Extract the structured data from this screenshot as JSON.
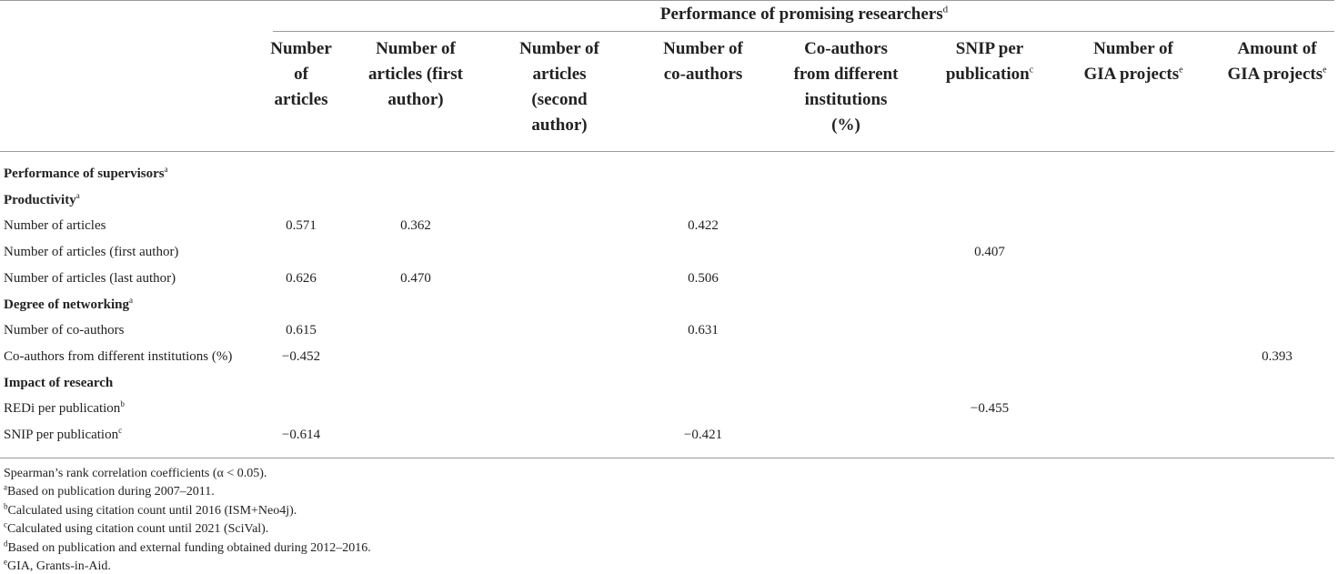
{
  "group_header": {
    "text": "Performance of promising researchers",
    "sup": "d"
  },
  "columns": [
    {
      "lines": [
        "Number",
        "of",
        "articles"
      ],
      "sup": ""
    },
    {
      "lines": [
        "Number of",
        "articles (first",
        "author)"
      ],
      "sup": ""
    },
    {
      "lines": [
        "Number of",
        "articles",
        "(second",
        "author)"
      ],
      "sup": ""
    },
    {
      "lines": [
        "Number of",
        "co-authors"
      ],
      "sup": ""
    },
    {
      "lines": [
        "Co-authors",
        "from different",
        "institutions",
        "(%)"
      ],
      "sup": ""
    },
    {
      "lines": [
        "SNIP per",
        "publication"
      ],
      "sup": "c"
    },
    {
      "lines": [
        "Number of",
        "GIA projects"
      ],
      "sup": "e"
    },
    {
      "lines": [
        "Amount of",
        "GIA projects"
      ],
      "sup": "e"
    }
  ],
  "rows": [
    {
      "label": "Performance of supervisors",
      "sup": "a",
      "section": true,
      "values": [
        "",
        "",
        "",
        "",
        "",
        "",
        "",
        ""
      ]
    },
    {
      "label": "Productivity",
      "sup": "a",
      "section": true,
      "values": [
        "",
        "",
        "",
        "",
        "",
        "",
        "",
        ""
      ]
    },
    {
      "label": "Number of articles",
      "sup": "",
      "section": false,
      "values": [
        "0.571",
        "0.362",
        "",
        "0.422",
        "",
        "",
        "",
        ""
      ]
    },
    {
      "label": "Number of articles (first author)",
      "sup": "",
      "section": false,
      "values": [
        "",
        "",
        "",
        "",
        "",
        "0.407",
        "",
        ""
      ]
    },
    {
      "label": "Number of articles (last author)",
      "sup": "",
      "section": false,
      "values": [
        "0.626",
        "0.470",
        "",
        "0.506",
        "",
        "",
        "",
        ""
      ]
    },
    {
      "label": "Degree of networking",
      "sup": "a",
      "section": true,
      "values": [
        "",
        "",
        "",
        "",
        "",
        "",
        "",
        ""
      ]
    },
    {
      "label": "Number of co-authors",
      "sup": "",
      "section": false,
      "values": [
        "0.615",
        "",
        "",
        "0.631",
        "",
        "",
        "",
        ""
      ]
    },
    {
      "label": "Co-authors from different institutions (%)",
      "sup": "",
      "section": false,
      "values": [
        "−0.452",
        "",
        "",
        "",
        "",
        "",
        "",
        "0.393"
      ]
    },
    {
      "label": "Impact of research",
      "sup": "",
      "section": true,
      "values": [
        "",
        "",
        "",
        "",
        "",
        "",
        "",
        ""
      ]
    },
    {
      "label": "REDi per publication",
      "sup": "b",
      "section": false,
      "values": [
        "",
        "",
        "",
        "",
        "",
        "−0.455",
        "",
        ""
      ]
    },
    {
      "label": "SNIP per publication",
      "sup": "c",
      "section": false,
      "values": [
        "−0.614",
        "",
        "",
        "−0.421",
        "",
        "",
        "",
        ""
      ]
    }
  ],
  "footnotes": [
    {
      "sup": "",
      "text": "Spearman’s rank correlation coefficients (α < 0.05)."
    },
    {
      "sup": "a",
      "text": "Based on publication during 2007–2011."
    },
    {
      "sup": "b",
      "text": "Calculated using citation count until 2016 (ISM+Neo4j)."
    },
    {
      "sup": "c",
      "text": "Calculated using citation count until 2021 (SciVal)."
    },
    {
      "sup": "d",
      "text": "Based on publication and external funding obtained during 2012–2016."
    },
    {
      "sup": "e",
      "text": "GIA, Grants-in-Aid."
    }
  ]
}
